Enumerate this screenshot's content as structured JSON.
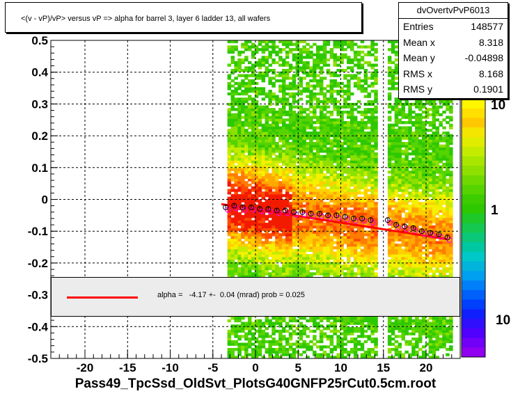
{
  "chart_data": {
    "type": "heatmap",
    "title": "<(v - vP)/vP> versus  vP => alpha for barrel 3, layer 6 ladder 13, all wafers",
    "xlim": [
      -24,
      24
    ],
    "ylim": [
      -0.5,
      0.5
    ],
    "x_ticks": [
      -20,
      -15,
      -10,
      -5,
      0,
      5,
      10,
      15,
      20
    ],
    "y_ticks": [
      -0.5,
      -0.4,
      -0.3,
      -0.2,
      -0.1,
      0,
      0.1,
      0.2,
      0.3,
      0.4,
      0.5
    ],
    "y_tick_labels": [
      "-0.5",
      "-0.4",
      "-0.3",
      "-0.2",
      "-0.1",
      "0",
      "0.1",
      "0.2",
      "0.3",
      "0.4",
      "0.5"
    ],
    "z_scale": "log",
    "z_tick_labels": [
      "10",
      "1",
      "10"
    ],
    "grid": true,
    "profile_points": {
      "x": [
        -3.5,
        -2.5,
        -1.5,
        -0.5,
        0.5,
        1.5,
        2.5,
        3.5,
        4.5,
        5.5,
        6.5,
        7.5,
        8.5,
        9.5,
        10.5,
        11.5,
        12.5,
        13.5,
        15.5,
        16.5,
        17.5,
        18.5,
        19.5,
        20.5,
        21.5,
        22.5
      ],
      "y": [
        -0.025,
        -0.02,
        -0.025,
        -0.025,
        -0.03,
        -0.03,
        -0.035,
        -0.035,
        -0.04,
        -0.04,
        -0.045,
        -0.045,
        -0.05,
        -0.05,
        -0.055,
        -0.06,
        -0.06,
        -0.065,
        -0.065,
        -0.08,
        -0.085,
        -0.09,
        -0.1,
        -0.105,
        -0.11,
        -0.12
      ]
    },
    "fit_line": {
      "x": [
        -4,
        22.5
      ],
      "y": [
        -0.015,
        -0.125
      ]
    },
    "stats": {
      "name": "dvOvertvPvP6013",
      "entries": "148577",
      "mean_x": "8.318",
      "mean_y": "-0.04898",
      "rms_x": "8.168",
      "rms_y": "0.1901"
    },
    "legend": "alpha =   -4.17 +-  0.04 (mrad) prob = 0.025",
    "footer": "Pass49_TpcSsd_OldSvt_PlotsG40GNFP25rCut0.5cm.root"
  },
  "labels": {
    "entries": "Entries",
    "mean_x": "Mean x",
    "mean_y": "Mean y",
    "rms_x": "RMS x",
    "rms_y": "RMS y"
  }
}
